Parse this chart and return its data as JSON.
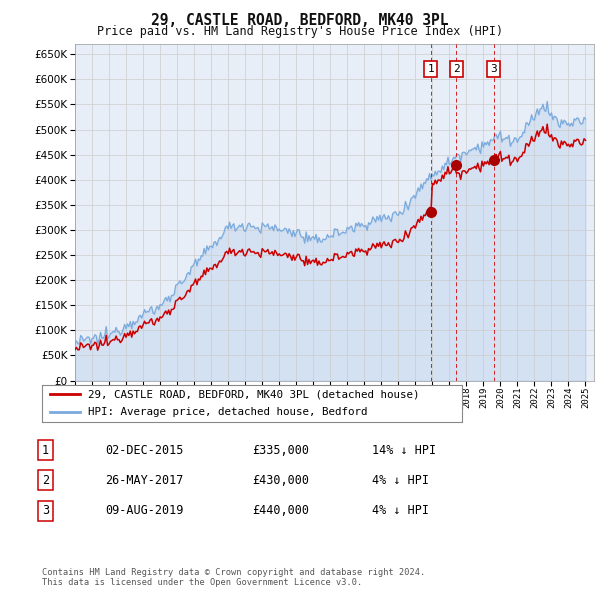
{
  "title": "29, CASTLE ROAD, BEDFORD, MK40 3PL",
  "subtitle": "Price paid vs. HM Land Registry's House Price Index (HPI)",
  "ytick_values": [
    0,
    50000,
    100000,
    150000,
    200000,
    250000,
    300000,
    350000,
    400000,
    450000,
    500000,
    550000,
    600000,
    650000
  ],
  "ylim": [
    0,
    670000
  ],
  "hpi_color": "#7aaadd",
  "price_color": "#cc0000",
  "sale_color": "#aa0000",
  "vline_color": "#cc0000",
  "grid_color": "#cccccc",
  "bg_color": "#ffffff",
  "plot_bg_color": "#e8eef8",
  "sales": [
    {
      "date_num": 2015.92,
      "price": 335000,
      "label": "1",
      "date_str": "02-DEC-2015",
      "pct": "14%"
    },
    {
      "date_num": 2017.4,
      "price": 430000,
      "label": "2",
      "date_str": "26-MAY-2017",
      "pct": "4%"
    },
    {
      "date_num": 2019.6,
      "price": 440000,
      "label": "3",
      "date_str": "09-AUG-2019",
      "pct": "4%"
    }
  ],
  "legend_label_price": "29, CASTLE ROAD, BEDFORD, MK40 3PL (detached house)",
  "legend_label_hpi": "HPI: Average price, detached house, Bedford",
  "footnote": "Contains HM Land Registry data © Crown copyright and database right 2024.\nThis data is licensed under the Open Government Licence v3.0.",
  "xmin": 1995,
  "xmax": 2025.5,
  "table_rows": [
    [
      "1",
      "02-DEC-2015",
      "£335,000",
      "14% ↓ HPI"
    ],
    [
      "2",
      "26-MAY-2017",
      "£430,000",
      "4% ↓ HPI"
    ],
    [
      "3",
      "09-AUG-2019",
      "£440,000",
      "4% ↓ HPI"
    ]
  ]
}
